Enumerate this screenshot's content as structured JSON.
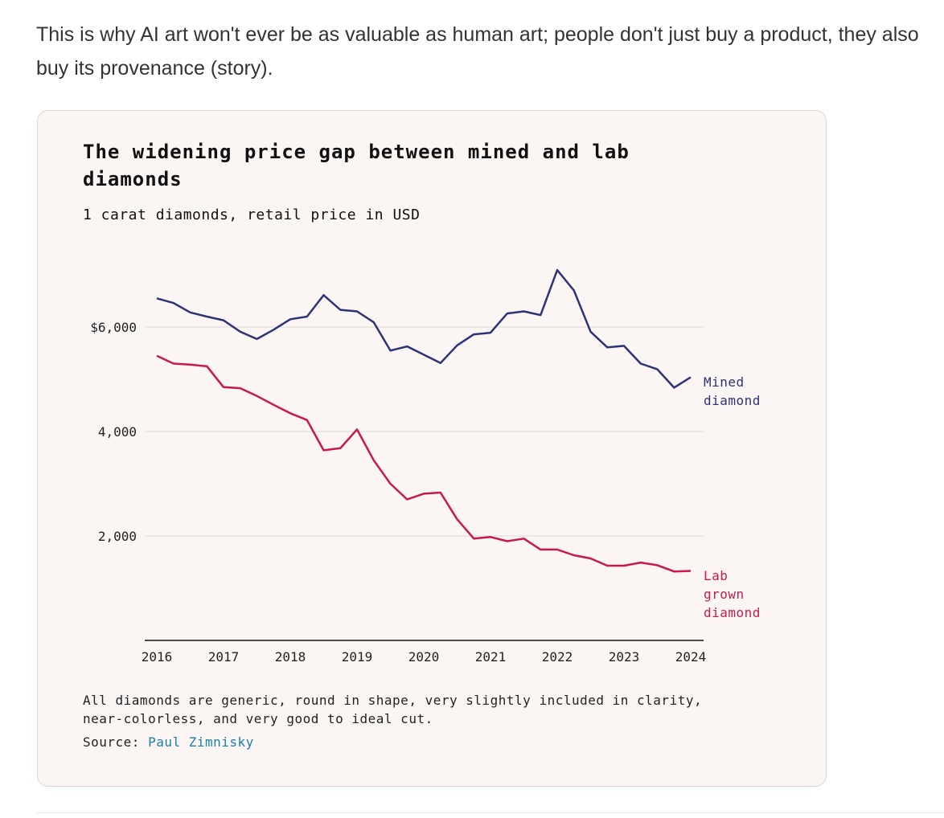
{
  "post": {
    "text": "This is why AI art won't ever be as valuable as human art; people don't just buy a product, they also buy its provenance (story)."
  },
  "colors": {
    "mined": "#2e3278",
    "lab": "#c8194a",
    "grid": "#dedad6",
    "link": "#1a7fa8"
  },
  "chart_data": {
    "type": "line",
    "title": "The widening price gap between mined and lab diamonds",
    "subtitle": "1 carat diamonds, retail price in USD",
    "xlabel": "",
    "ylabel": "",
    "x_start": 2016,
    "x_end": 2024,
    "points_per_year": 4,
    "xticks": [
      "2016",
      "2017",
      "2018",
      "2019",
      "2020",
      "2021",
      "2022",
      "2023",
      "2024"
    ],
    "yticks": [
      {
        "value": 6000,
        "label": "$6,000"
      },
      {
        "value": 4000,
        "label": "4,000"
      },
      {
        "value": 2000,
        "label": "2,000"
      }
    ],
    "ylim": [
      0,
      7500
    ],
    "grid": true,
    "series": [
      {
        "name": "Mined diamond",
        "label_lines": [
          "Mined",
          "diamond"
        ],
        "values": [
          6550,
          6460,
          6280,
          6200,
          6130,
          5910,
          5770,
          5950,
          6150,
          6200,
          6610,
          6330,
          6300,
          6090,
          5550,
          5630,
          5470,
          5310,
          5650,
          5860,
          5890,
          6260,
          6300,
          6230,
          7090,
          6700,
          5910,
          5610,
          5640,
          5300,
          5190,
          4840,
          5040
        ]
      },
      {
        "name": "Lab grown diamond",
        "label_lines": [
          "Lab",
          "grown",
          "diamond"
        ],
        "values": [
          5450,
          5300,
          5280,
          5250,
          4850,
          4830,
          4680,
          4510,
          4350,
          4220,
          3640,
          3680,
          4040,
          3450,
          3000,
          2700,
          2810,
          2830,
          2320,
          1950,
          1980,
          1900,
          1950,
          1740,
          1740,
          1630,
          1570,
          1430,
          1430,
          1490,
          1440,
          1320,
          1330
        ]
      }
    ],
    "note": "All diamonds are generic, round in shape, very slightly included in clarity, near-colorless, and very good to ideal cut.",
    "source_label": "Source:",
    "source_name": "Paul Zimnisky"
  }
}
